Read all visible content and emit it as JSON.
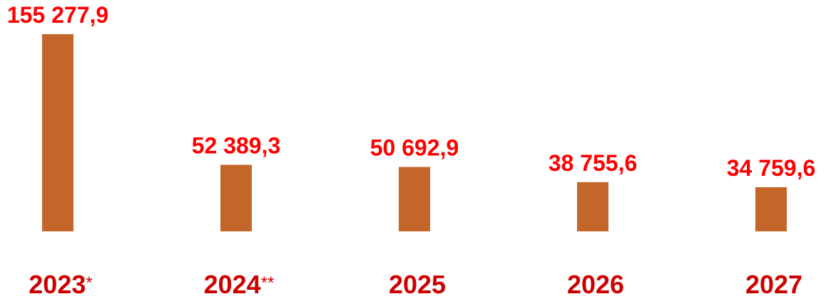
{
  "chart_data": {
    "type": "bar",
    "categories": [
      {
        "year": "2023",
        "suffix": "*"
      },
      {
        "year": "2024",
        "suffix": "**"
      },
      {
        "year": "2025",
        "suffix": ""
      },
      {
        "year": "2026",
        "suffix": ""
      },
      {
        "year": "2027",
        "suffix": ""
      }
    ],
    "values": [
      155277.9,
      52389.3,
      50692.9,
      38755.6,
      34759.6
    ],
    "value_labels": [
      "155 277,9",
      "52 389,3",
      "50 692,9",
      "38 755,6",
      "34 759,6"
    ],
    "title": "",
    "xlabel": "",
    "ylabel": "",
    "ylim": [
      0,
      155277.9
    ],
    "grid": false,
    "legend": "none",
    "colors": {
      "bar": "#C4652A",
      "value_label": "#FF0000",
      "category_label": "#CC0000"
    }
  }
}
